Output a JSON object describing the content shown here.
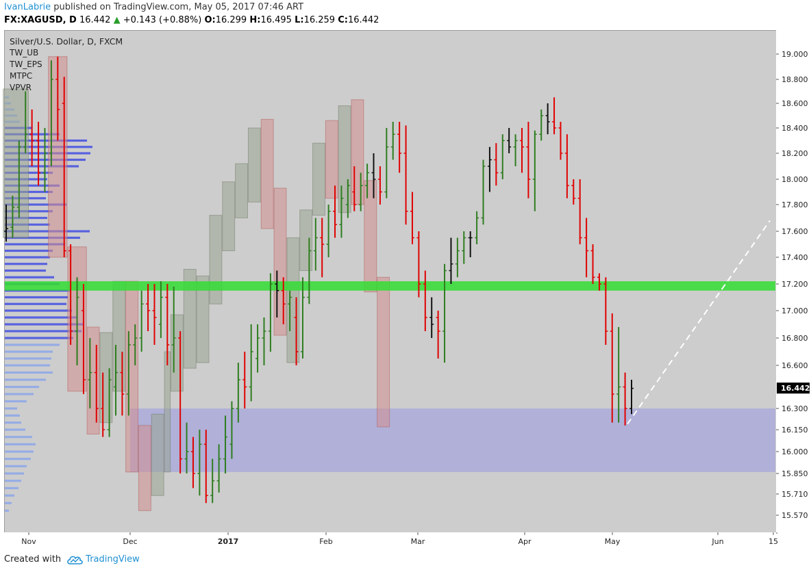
{
  "header": {
    "author": "IvanLabrie",
    "published": " published on TradingView.com, May 05, 2017 07:46 ART",
    "symbol": "FX:XAGUSD, D",
    "price": "16.442",
    "change": "+0.143 (+0.88%)",
    "o_label": "O:",
    "o": "16.299",
    "h_label": "H:",
    "h": "16.495",
    "l_label": "L:",
    "l": "16.259",
    "c_label": "C:",
    "c": "16.442"
  },
  "legend": {
    "title": "Silver/U.S. Dollar, D, FXCM",
    "items": [
      "TW_UB",
      "TW_EPS",
      "MTPC",
      "VPVR"
    ]
  },
  "footer": {
    "created_with": "Created with",
    "brand": "TradingView"
  },
  "chart_data": {
    "type": "candlestick",
    "symbol": "XAGUSD",
    "timeframe": "D",
    "x_ticks": [
      "Nov",
      "Dec",
      "2017",
      "Feb",
      "Mar",
      "Apr",
      "May",
      "Jun",
      "15"
    ],
    "y_ticks": [
      19.0,
      18.8,
      18.6,
      18.4,
      18.2,
      18.0,
      17.8,
      17.6,
      17.4,
      17.2,
      17.0,
      16.8,
      16.6,
      16.3,
      16.15,
      16.0,
      15.85,
      15.71,
      15.57
    ],
    "ylim": [
      15.5,
      19.2
    ],
    "last_price": 16.442,
    "last_price_label": "16.442",
    "resistance_zone": [
      17.15,
      17.22
    ],
    "support_zone": [
      15.86,
      16.3
    ],
    "projection": {
      "from": 16.19,
      "to": 17.68
    },
    "ohlc": [
      [
        17.6,
        17.8,
        17.52,
        17.62
      ],
      [
        17.63,
        17.87,
        17.55,
        17.78
      ],
      [
        17.78,
        18.3,
        17.7,
        18.25
      ],
      [
        18.25,
        18.7,
        18.2,
        18.35
      ],
      [
        18.35,
        18.55,
        18.1,
        18.3
      ],
      [
        18.3,
        18.45,
        17.95,
        18.05
      ],
      [
        18.05,
        18.4,
        17.9,
        18.2
      ],
      [
        18.2,
        18.95,
        18.1,
        18.8
      ],
      [
        18.8,
        18.98,
        18.3,
        18.55
      ],
      [
        18.6,
        18.82,
        17.4,
        17.45
      ],
      [
        17.45,
        17.5,
        16.75,
        16.85
      ],
      [
        16.85,
        17.25,
        16.6,
        17.1
      ],
      [
        17.0,
        17.2,
        16.4,
        16.5
      ],
      [
        16.5,
        16.8,
        16.3,
        16.55
      ],
      [
        16.55,
        16.75,
        16.2,
        16.3
      ],
      [
        16.3,
        16.55,
        16.1,
        16.15
      ],
      [
        16.15,
        16.58,
        16.1,
        16.5
      ],
      [
        16.45,
        16.75,
        16.25,
        16.55
      ],
      [
        16.55,
        16.7,
        16.25,
        16.4
      ],
      [
        16.4,
        16.85,
        16.25,
        16.75
      ],
      [
        16.75,
        16.9,
        16.6,
        16.8
      ],
      [
        16.8,
        17.15,
        16.7,
        17.05
      ],
      [
        17.05,
        17.2,
        16.85,
        17.0
      ],
      [
        17.0,
        17.2,
        16.75,
        16.95
      ],
      [
        16.9,
        17.22,
        16.8,
        17.1
      ],
      [
        17.1,
        17.2,
        16.6,
        16.75
      ],
      [
        16.75,
        17.18,
        16.55,
        16.8
      ],
      [
        16.8,
        16.85,
        15.85,
        15.95
      ],
      [
        15.95,
        16.2,
        15.85,
        16.0
      ],
      [
        16.0,
        16.1,
        15.75,
        15.85
      ],
      [
        15.85,
        16.15,
        15.7,
        16.05
      ],
      [
        16.05,
        16.15,
        15.65,
        15.7
      ],
      [
        15.7,
        15.95,
        15.65,
        15.8
      ],
      [
        15.8,
        16.05,
        15.72,
        15.95
      ],
      [
        15.95,
        16.25,
        15.85,
        16.1
      ],
      [
        16.05,
        16.35,
        15.95,
        16.3
      ],
      [
        16.3,
        16.62,
        16.2,
        16.5
      ],
      [
        16.5,
        16.7,
        16.3,
        16.45
      ],
      [
        16.45,
        16.9,
        16.35,
        16.7
      ],
      [
        16.65,
        16.9,
        16.55,
        16.8
      ],
      [
        16.8,
        16.95,
        16.6,
        16.85
      ],
      [
        16.85,
        17.28,
        16.7,
        17.2
      ],
      [
        17.2,
        17.3,
        16.95,
        17.15
      ],
      [
        17.15,
        17.25,
        16.9,
        17.05
      ],
      [
        17.05,
        17.15,
        16.85,
        17.1
      ],
      [
        16.95,
        17.1,
        16.6,
        16.7
      ],
      [
        16.7,
        17.25,
        16.65,
        17.1
      ],
      [
        17.1,
        17.55,
        17.05,
        17.45
      ],
      [
        17.45,
        17.7,
        17.3,
        17.55
      ],
      [
        17.55,
        17.7,
        17.25,
        17.5
      ],
      [
        17.5,
        17.8,
        17.4,
        17.75
      ],
      [
        17.75,
        17.95,
        17.55,
        17.65
      ],
      [
        17.65,
        17.95,
        17.55,
        17.85
      ],
      [
        17.8,
        18.0,
        17.7,
        17.95
      ],
      [
        17.9,
        18.1,
        17.75,
        17.8
      ],
      [
        17.8,
        18.05,
        17.75,
        17.95
      ],
      [
        17.95,
        18.12,
        17.85,
        18.05
      ],
      [
        18.05,
        18.2,
        17.85,
        18.0
      ],
      [
        18.0,
        18.1,
        17.8,
        17.9
      ],
      [
        17.9,
        18.4,
        17.85,
        18.25
      ],
      [
        18.25,
        18.45,
        18.15,
        18.35
      ],
      [
        18.35,
        18.45,
        18.05,
        18.2
      ],
      [
        18.2,
        18.42,
        17.65,
        17.75
      ],
      [
        17.75,
        17.9,
        17.5,
        17.55
      ],
      [
        17.55,
        17.6,
        17.1,
        17.2
      ],
      [
        17.2,
        17.3,
        16.85,
        16.95
      ],
      [
        16.95,
        17.1,
        16.8,
        16.9
      ],
      [
        16.95,
        17.0,
        16.65,
        16.85
      ],
      [
        16.85,
        17.35,
        16.62,
        17.3
      ],
      [
        17.3,
        17.55,
        17.2,
        17.35
      ],
      [
        17.35,
        17.55,
        17.25,
        17.45
      ],
      [
        17.45,
        17.6,
        17.35,
        17.55
      ],
      [
        17.55,
        17.6,
        17.4,
        17.55
      ],
      [
        17.55,
        17.75,
        17.5,
        17.7
      ],
      [
        17.7,
        18.15,
        17.65,
        18.1
      ],
      [
        18.1,
        18.25,
        17.9,
        18.15
      ],
      [
        18.15,
        18.28,
        17.95,
        18.05
      ],
      [
        18.05,
        18.35,
        18.0,
        18.3
      ],
      [
        18.3,
        18.4,
        18.2,
        18.25
      ],
      [
        18.25,
        18.35,
        18.1,
        18.3
      ],
      [
        18.3,
        18.4,
        18.05,
        18.25
      ],
      [
        18.25,
        18.45,
        17.85,
        18.0
      ],
      [
        18.0,
        18.38,
        17.75,
        18.35
      ],
      [
        18.35,
        18.55,
        18.3,
        18.5
      ],
      [
        18.5,
        18.6,
        18.35,
        18.45
      ],
      [
        18.45,
        18.65,
        18.35,
        18.4
      ],
      [
        18.4,
        18.45,
        18.15,
        18.2
      ],
      [
        18.2,
        18.35,
        17.85,
        17.95
      ],
      [
        17.95,
        18.0,
        17.8,
        17.85
      ],
      [
        17.85,
        18.0,
        17.5,
        17.55
      ],
      [
        17.55,
        17.7,
        17.25,
        17.45
      ],
      [
        17.45,
        17.5,
        17.2,
        17.25
      ],
      [
        17.25,
        17.28,
        17.15,
        17.2
      ],
      [
        17.2,
        17.25,
        16.75,
        16.85
      ],
      [
        16.85,
        16.98,
        16.2,
        16.4
      ],
      [
        16.4,
        16.88,
        16.2,
        16.45
      ],
      [
        16.45,
        16.55,
        16.18,
        16.3
      ],
      [
        16.3,
        16.5,
        16.26,
        16.44
      ]
    ],
    "boxes": [
      [
        0,
        3,
        17.55,
        18.72,
        "g"
      ],
      [
        7,
        9,
        17.4,
        18.98,
        "r"
      ],
      [
        10,
        12,
        16.42,
        17.48,
        "r"
      ],
      [
        13,
        14,
        16.12,
        16.88,
        "r"
      ],
      [
        15,
        16,
        16.2,
        16.84,
        "g"
      ],
      [
        17,
        18,
        16.42,
        17.22,
        "g"
      ],
      [
        19,
        20,
        15.86,
        17.22,
        "r"
      ],
      [
        21,
        22,
        15.6,
        16.18,
        "r"
      ],
      [
        23,
        24,
        15.7,
        16.26,
        "g"
      ],
      [
        25,
        25,
        15.86,
        16.7,
        "g"
      ],
      [
        26,
        27,
        16.42,
        16.97,
        "g"
      ],
      [
        28,
        29,
        16.58,
        17.31,
        "g"
      ],
      [
        30,
        31,
        16.62,
        17.26,
        "g"
      ],
      [
        32,
        33,
        17.05,
        17.72,
        "g"
      ],
      [
        34,
        35,
        17.45,
        17.98,
        "g"
      ],
      [
        36,
        37,
        17.7,
        18.12,
        "g"
      ],
      [
        38,
        39,
        17.82,
        18.4,
        "g"
      ],
      [
        40,
        41,
        17.62,
        18.47,
        "r"
      ],
      [
        42,
        43,
        16.82,
        17.93,
        "r"
      ],
      [
        44,
        45,
        16.62,
        17.55,
        "g"
      ],
      [
        46,
        47,
        17.3,
        17.76,
        "g"
      ],
      [
        48,
        49,
        17.72,
        18.28,
        "g"
      ],
      [
        50,
        51,
        17.85,
        18.46,
        "r"
      ],
      [
        52,
        53,
        17.74,
        18.58,
        "g"
      ],
      [
        54,
        55,
        17.8,
        18.63,
        "r"
      ],
      [
        56,
        57,
        17.14,
        17.99,
        "r"
      ],
      [
        58,
        59,
        16.17,
        17.25,
        "r"
      ]
    ],
    "volume_profile": [
      [
        18.65,
        6,
        "l"
      ],
      [
        18.6,
        9,
        "l"
      ],
      [
        18.55,
        14,
        "l"
      ],
      [
        18.5,
        18,
        "l"
      ],
      [
        18.45,
        22,
        "l"
      ],
      [
        18.4,
        40,
        "d"
      ],
      [
        18.35,
        80,
        "d"
      ],
      [
        18.3,
        120,
        "d"
      ],
      [
        18.25,
        128,
        "d"
      ],
      [
        18.2,
        125,
        "d"
      ],
      [
        18.15,
        118,
        "d"
      ],
      [
        18.1,
        108,
        "d"
      ],
      [
        18.05,
        70,
        "d"
      ],
      [
        18.0,
        62,
        "d"
      ],
      [
        17.95,
        80,
        "d"
      ],
      [
        17.9,
        70,
        "d"
      ],
      [
        17.85,
        60,
        "d"
      ],
      [
        17.8,
        90,
        "d"
      ],
      [
        17.75,
        70,
        "d"
      ],
      [
        17.7,
        62,
        "d"
      ],
      [
        17.65,
        66,
        "d"
      ],
      [
        17.6,
        124,
        "d"
      ],
      [
        17.55,
        110,
        "d"
      ],
      [
        17.5,
        88,
        "d"
      ],
      [
        17.45,
        70,
        "d"
      ],
      [
        17.4,
        66,
        "d"
      ],
      [
        17.35,
        62,
        "d"
      ],
      [
        17.3,
        60,
        "d"
      ],
      [
        17.25,
        72,
        "d"
      ],
      [
        17.2,
        80,
        "d"
      ],
      [
        17.15,
        96,
        "d"
      ],
      [
        17.1,
        92,
        "d"
      ],
      [
        17.05,
        90,
        "d"
      ],
      [
        17.0,
        98,
        "d"
      ],
      [
        16.95,
        105,
        "d"
      ],
      [
        16.9,
        115,
        "d"
      ],
      [
        16.85,
        112,
        "d"
      ],
      [
        16.8,
        100,
        "d"
      ],
      [
        16.75,
        80,
        "l"
      ],
      [
        16.7,
        70,
        "l"
      ],
      [
        16.65,
        68,
        "l"
      ],
      [
        16.6,
        66,
        "l"
      ],
      [
        16.55,
        70,
        "l"
      ],
      [
        16.5,
        60,
        "l"
      ],
      [
        16.45,
        50,
        "l"
      ],
      [
        16.4,
        42,
        "l"
      ],
      [
        16.35,
        32,
        "l"
      ],
      [
        16.3,
        18,
        "l"
      ],
      [
        16.25,
        22,
        "l"
      ],
      [
        16.2,
        24,
        "l"
      ],
      [
        16.15,
        30,
        "l"
      ],
      [
        16.1,
        40,
        "l"
      ],
      [
        16.05,
        45,
        "l"
      ],
      [
        16.0,
        42,
        "l"
      ],
      [
        15.95,
        38,
        "l"
      ],
      [
        15.9,
        32,
        "l"
      ],
      [
        15.85,
        28,
        "l"
      ],
      [
        15.8,
        24,
        "l"
      ],
      [
        15.75,
        20,
        "l"
      ],
      [
        15.7,
        14,
        "l"
      ],
      [
        15.65,
        10,
        "l"
      ],
      [
        15.6,
        6,
        "l"
      ]
    ]
  }
}
